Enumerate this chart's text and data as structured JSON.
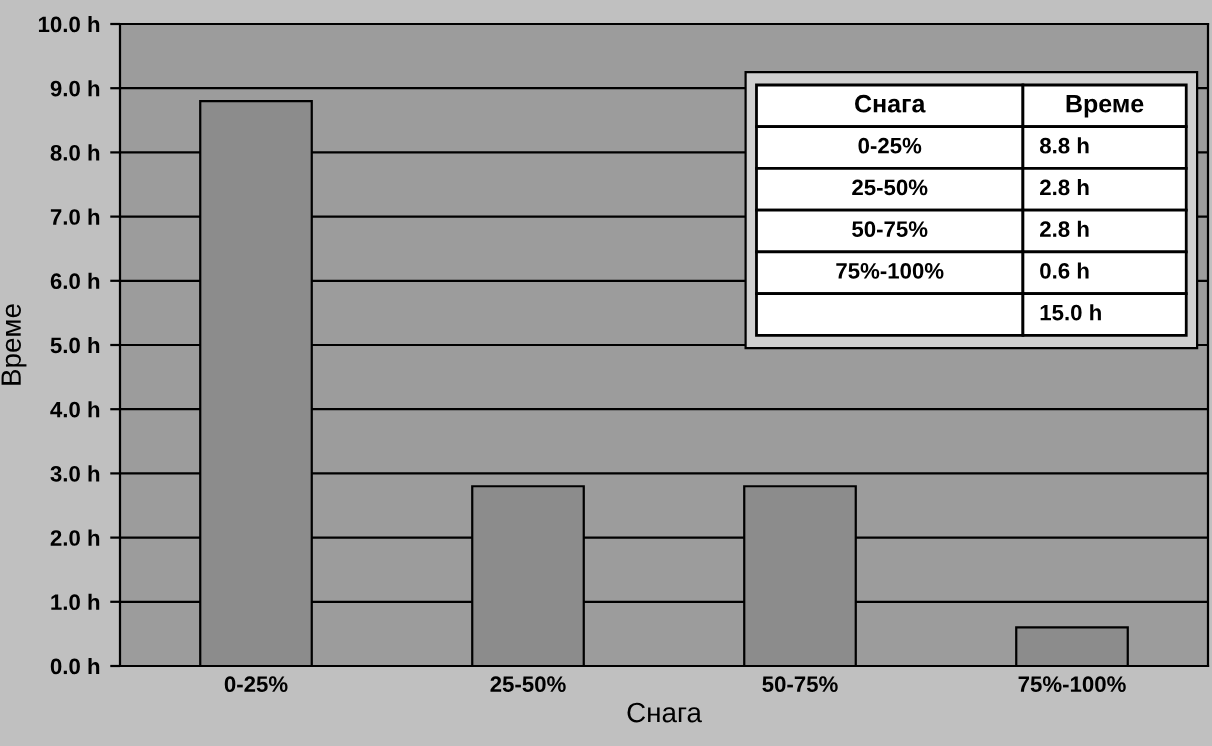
{
  "chart_data": {
    "type": "bar",
    "xlabel": "Снага",
    "ylabel": "Време",
    "categories": [
      "0-25%",
      "25-50%",
      "50-75%",
      "75%-100%"
    ],
    "values": [
      8.8,
      2.8,
      2.8,
      0.6
    ],
    "color": "#8c8c8c",
    "annotations": [
      "8.8 h",
      "2.8 h",
      "2.8 h",
      "0.6 h",
      "15.0 h"
    ],
    "ylim": [
      0,
      10
    ],
    "yticks": [
      {
        "value": 0,
        "label": "0.0 h"
      },
      {
        "value": 1,
        "label": "1.0 h"
      },
      {
        "value": 2,
        "label": "2.0 h"
      },
      {
        "value": 3,
        "label": "3.0 h"
      },
      {
        "value": 4,
        "label": "4.0 h"
      },
      {
        "value": 5,
        "label": "5.0 h"
      },
      {
        "value": 6,
        "label": "6.0 h"
      },
      {
        "value": 7,
        "label": "7.0 h"
      },
      {
        "value": 8,
        "label": "8.0 h"
      },
      {
        "value": 9,
        "label": "9.0 h"
      },
      {
        "value": 10,
        "label": "10.0 h"
      }
    ],
    "grid": "y",
    "legend": false
  }
}
